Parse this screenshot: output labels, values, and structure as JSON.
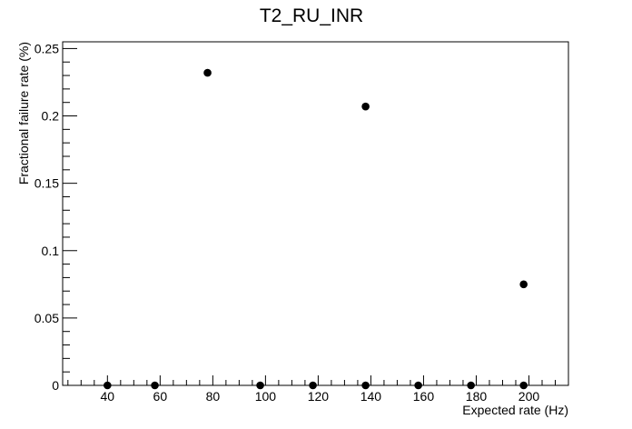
{
  "chart_data": {
    "type": "scatter",
    "title": "T2_RU_INR",
    "xlabel": "Expected rate (Hz)",
    "ylabel": "Fractional failure rate (%)",
    "xlim": [
      23,
      215
    ],
    "ylim": [
      0,
      0.255
    ],
    "x_ticks": [
      40,
      60,
      80,
      100,
      120,
      140,
      160,
      180,
      200
    ],
    "x_tick_labels": [
      "40",
      "60",
      "80",
      "100",
      "120",
      "140",
      "160",
      "180",
      "200"
    ],
    "y_ticks": [
      0,
      0.05,
      0.1,
      0.15,
      0.2,
      0.25
    ],
    "y_tick_labels": [
      "0",
      "0.05",
      "0.1",
      "0.15",
      "0.2",
      "0.25"
    ],
    "grid": false,
    "legend": "none",
    "marker_color": "#000000",
    "points": [
      {
        "x": 40,
        "y": 0
      },
      {
        "x": 58,
        "y": 0
      },
      {
        "x": 78,
        "y": 0.232
      },
      {
        "x": 98,
        "y": 0
      },
      {
        "x": 118,
        "y": 0
      },
      {
        "x": 138,
        "y": 0.207
      },
      {
        "x": 138,
        "y": 0
      },
      {
        "x": 158,
        "y": 0
      },
      {
        "x": 178,
        "y": 0
      },
      {
        "x": 198,
        "y": 0.075
      },
      {
        "x": 198,
        "y": 0
      }
    ]
  }
}
